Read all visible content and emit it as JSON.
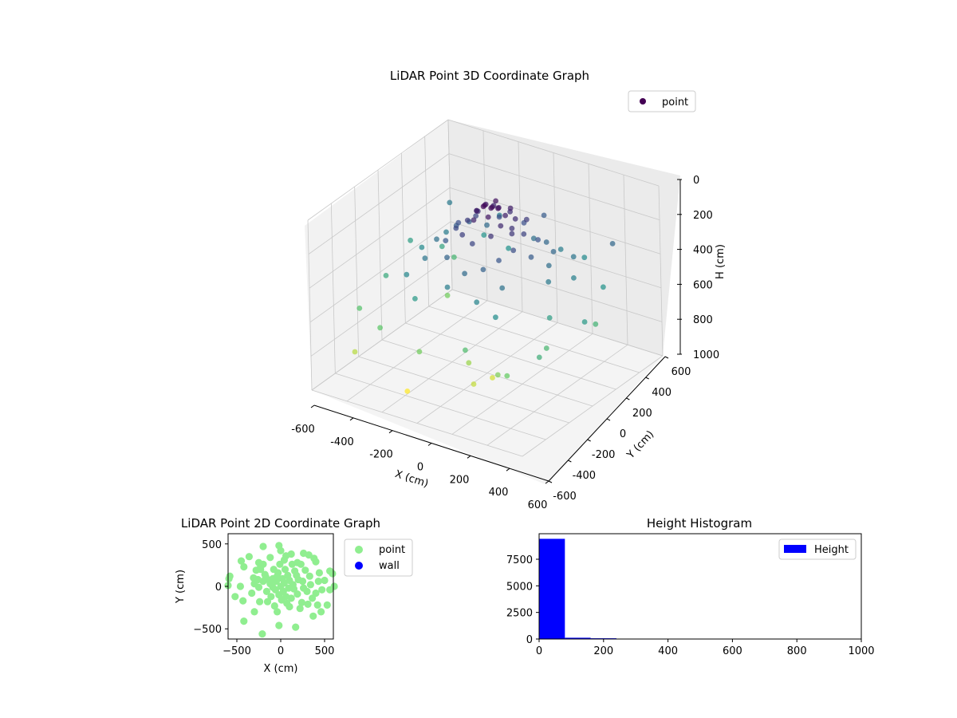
{
  "chart_data": [
    {
      "type": "scatter3d",
      "title": "LiDAR Point 3D Coordinate Graph",
      "xlabel": "X (cm)",
      "ylabel": "Y (cm)",
      "zlabel": "H (cm)",
      "xlim": [
        -600,
        600
      ],
      "ylim": [
        -600,
        600
      ],
      "zlim": [
        0,
        1000
      ],
      "z_inverted": true,
      "x_ticks": [
        -600,
        -400,
        -200,
        0,
        200,
        400,
        600
      ],
      "y_ticks": [
        -600,
        -400,
        -200,
        0,
        200,
        400,
        600
      ],
      "z_ticks": [
        0,
        200,
        400,
        600,
        800,
        1000
      ],
      "colormap": "viridis",
      "grid": true,
      "legend": [
        {
          "label": "point",
          "color": "#440154"
        }
      ],
      "legend_position": "upper-right",
      "points": [
        [
          -20,
          40,
          40
        ],
        [
          10,
          60,
          50
        ],
        [
          30,
          20,
          30
        ],
        [
          -40,
          80,
          60
        ],
        [
          50,
          50,
          40
        ],
        [
          0,
          0,
          20
        ],
        [
          20,
          100,
          70
        ],
        [
          -60,
          30,
          80
        ],
        [
          40,
          -20,
          60
        ],
        [
          -10,
          120,
          50
        ],
        [
          70,
          80,
          90
        ],
        [
          -80,
          60,
          100
        ],
        [
          90,
          10,
          110
        ],
        [
          -30,
          -40,
          90
        ],
        [
          60,
          140,
          80
        ],
        [
          100,
          120,
          120
        ],
        [
          -100,
          100,
          130
        ],
        [
          120,
          60,
          140
        ],
        [
          -50,
          160,
          110
        ],
        [
          140,
          30,
          150
        ],
        [
          -120,
          40,
          160
        ],
        [
          30,
          180,
          130
        ],
        [
          80,
          -60,
          140
        ],
        [
          -70,
          -80,
          170
        ],
        [
          160,
          100,
          180
        ],
        [
          -140,
          140,
          190
        ],
        [
          110,
          200,
          160
        ],
        [
          -160,
          0,
          200
        ],
        [
          180,
          -20,
          210
        ],
        [
          0,
          -100,
          190
        ],
        [
          -200,
          80,
          220
        ],
        [
          200,
          160,
          230
        ],
        [
          -60,
          220,
          210
        ],
        [
          150,
          -100,
          240
        ],
        [
          -180,
          -60,
          250
        ],
        [
          60,
          250,
          220
        ],
        [
          240,
          40,
          260
        ],
        [
          -240,
          120,
          270
        ],
        [
          100,
          -160,
          280
        ],
        [
          -120,
          -140,
          290
        ],
        [
          260,
          200,
          300
        ],
        [
          -220,
          200,
          280
        ],
        [
          20,
          -200,
          310
        ],
        [
          300,
          100,
          320
        ],
        [
          -300,
          40,
          330
        ],
        [
          180,
          260,
          300
        ],
        [
          -160,
          260,
          310
        ],
        [
          220,
          -180,
          340
        ],
        [
          -260,
          -120,
          350
        ],
        [
          80,
          300,
          330
        ],
        [
          350,
          20,
          360
        ],
        [
          -340,
          180,
          370
        ],
        [
          -40,
          -260,
          380
        ],
        [
          320,
          280,
          350
        ],
        [
          140,
          -280,
          400
        ],
        [
          -300,
          -220,
          410
        ],
        [
          400,
          160,
          390
        ],
        [
          -400,
          60,
          420
        ],
        [
          260,
          -300,
          440
        ],
        [
          -80,
          320,
          450
        ],
        [
          200,
          350,
          380
        ],
        [
          -200,
          -300,
          480
        ],
        [
          420,
          -80,
          500
        ],
        [
          -420,
          260,
          520
        ],
        [
          500,
          260,
          460
        ],
        [
          -500,
          -100,
          540
        ],
        [
          300,
          400,
          420
        ],
        [
          -260,
          380,
          460
        ],
        [
          -380,
          300,
          590
        ],
        [
          480,
          -200,
          600
        ],
        [
          150,
          -400,
          620
        ],
        [
          -520,
          -300,
          640
        ],
        [
          560,
          100,
          580
        ],
        [
          -100,
          -420,
          700
        ],
        [
          -300,
          120,
          700
        ],
        [
          320,
          -380,
          720
        ],
        [
          100,
          -300,
          760
        ],
        [
          -450,
          -450,
          800
        ],
        [
          180,
          -380,
          820
        ],
        [
          200,
          -250,
          840
        ],
        [
          -120,
          -500,
          900
        ],
        [
          400,
          -420,
          680
        ],
        [
          -560,
          200,
          500
        ],
        [
          540,
          -350,
          560
        ],
        [
          -250,
          500,
          400
        ],
        [
          450,
          420,
          300
        ],
        [
          -350,
          -380,
          660
        ],
        [
          60,
          420,
          260
        ],
        [
          -480,
          420,
          360
        ],
        [
          600,
          -50,
          480
        ]
      ]
    },
    {
      "type": "scatter",
      "title": "LiDAR Point 2D Coordinate Graph",
      "xlabel": "X (cm)",
      "ylabel": "Y (cm)",
      "xlim": [
        -600,
        600
      ],
      "ylim": [
        -620,
        620
      ],
      "x_ticks": [
        -500,
        0,
        500
      ],
      "y_ticks": [
        -500,
        0,
        500
      ],
      "legend_position": "outside-right",
      "series": [
        {
          "name": "point",
          "color": "#90ee90",
          "points": [
            [
              -200,
              470
            ],
            [
              -20,
              480
            ],
            [
              60,
              360
            ],
            [
              260,
              390
            ],
            [
              320,
              370
            ],
            [
              400,
              290
            ],
            [
              -250,
              280
            ],
            [
              -200,
              260
            ],
            [
              130,
              260
            ],
            [
              190,
              280
            ],
            [
              -420,
              230
            ],
            [
              -230,
              200
            ],
            [
              280,
              190
            ],
            [
              -580,
              120
            ],
            [
              -590,
              90
            ],
            [
              590,
              150
            ],
            [
              560,
              180
            ],
            [
              -310,
              100
            ],
            [
              -90,
              90
            ],
            [
              430,
              60
            ],
            [
              340,
              20
            ],
            [
              -600,
              10
            ],
            [
              610,
              0
            ],
            [
              470,
              -40
            ],
            [
              400,
              -80
            ],
            [
              -430,
              -170
            ],
            [
              560,
              -40
            ],
            [
              -300,
              -300
            ],
            [
              -420,
              -410
            ],
            [
              -210,
              -560
            ],
            [
              -20,
              -460
            ],
            [
              170,
              -480
            ],
            [
              420,
              -220
            ],
            [
              530,
              -220
            ],
            [
              310,
              -210
            ],
            [
              240,
              -190
            ],
            [
              -150,
              -180
            ],
            [
              -60,
              -40
            ],
            [
              40,
              40
            ],
            [
              -120,
              30
            ],
            [
              100,
              70
            ],
            [
              -30,
              160
            ],
            [
              60,
              -120
            ],
            [
              -160,
              -60
            ],
            [
              150,
              -30
            ],
            [
              10,
              -160
            ],
            [
              -80,
              200
            ],
            [
              200,
              80
            ],
            [
              120,
              -140
            ],
            [
              -200,
              60
            ],
            [
              -50,
              60
            ],
            [
              30,
              -60
            ],
            [
              80,
              130
            ],
            [
              -110,
              -120
            ],
            [
              190,
              -90
            ],
            [
              -10,
              260
            ],
            [
              260,
              -20
            ],
            [
              -250,
              -10
            ],
            [
              0,
              0
            ],
            [
              50,
              200
            ],
            [
              -180,
              140
            ],
            [
              160,
              180
            ],
            [
              -70,
              -230
            ],
            [
              100,
              -240
            ],
            [
              230,
              260
            ],
            [
              -280,
              190
            ],
            [
              330,
              120
            ],
            [
              -330,
              -80
            ],
            [
              360,
              -140
            ],
            [
              -240,
              -180
            ],
            [
              70,
              -200
            ],
            [
              -40,
              120
            ],
            [
              140,
              20
            ],
            [
              -130,
              70
            ],
            [
              20,
              90
            ],
            [
              -20,
              -100
            ],
            [
              90,
              -20
            ],
            [
              -90,
              -10
            ],
            [
              180,
              130
            ],
            [
              -170,
              110
            ],
            [
              250,
              60
            ],
            [
              -260,
              80
            ],
            [
              300,
              -60
            ],
            [
              -300,
              30
            ],
            [
              40,
              310
            ],
            [
              -40,
              -300
            ],
            [
              -230,
              230
            ],
            [
              220,
              -260
            ],
            [
              440,
              160
            ],
            [
              -460,
              0
            ],
            [
              500,
              70
            ],
            [
              -520,
              -120
            ],
            [
              380,
              330
            ],
            [
              -360,
              350
            ],
            [
              370,
              -350
            ],
            [
              -120,
              340
            ],
            [
              120,
              380
            ],
            [
              0,
              420
            ],
            [
              -450,
              300
            ],
            [
              460,
              -300
            ]
          ]
        },
        {
          "name": "wall",
          "color": "#0000ff",
          "points": []
        }
      ]
    },
    {
      "type": "histogram",
      "title": "Height Histogram",
      "xlim": [
        0,
        1000
      ],
      "ylim": [
        0,
        9900
      ],
      "x_ticks": [
        0,
        200,
        400,
        600,
        800,
        1000
      ],
      "y_ticks": [
        0,
        2500,
        5000,
        7500
      ],
      "color": "#0000ff",
      "legend": [
        {
          "label": "Height",
          "color": "#0000ff"
        }
      ],
      "legend_position": "upper-right",
      "bins": [
        {
          "start": 0,
          "end": 80,
          "count": 9420
        },
        {
          "start": 80,
          "end": 160,
          "count": 120
        },
        {
          "start": 160,
          "end": 240,
          "count": 70
        },
        {
          "start": 240,
          "end": 320,
          "count": 25
        },
        {
          "start": 320,
          "end": 400,
          "count": 15
        },
        {
          "start": 400,
          "end": 480,
          "count": 10
        },
        {
          "start": 480,
          "end": 560,
          "count": 8
        },
        {
          "start": 560,
          "end": 640,
          "count": 6
        },
        {
          "start": 640,
          "end": 720,
          "count": 5
        },
        {
          "start": 720,
          "end": 800,
          "count": 4
        },
        {
          "start": 800,
          "end": 880,
          "count": 4
        },
        {
          "start": 880,
          "end": 960,
          "count": 3
        }
      ]
    }
  ]
}
